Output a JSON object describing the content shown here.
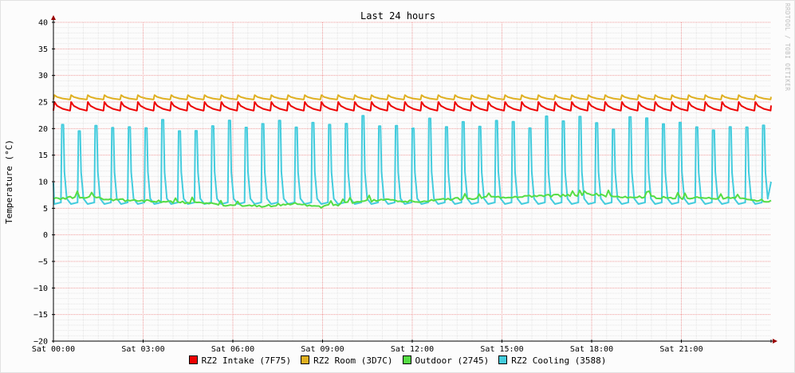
{
  "chart_data": {
    "type": "line",
    "title": "Last 24 hours",
    "ylabel": "Temperature (°C)",
    "xlabel": "",
    "ylim": [
      -20,
      40
    ],
    "yticks": [
      40,
      35,
      30,
      25,
      20,
      15,
      10,
      5,
      0,
      -5,
      -10,
      -15,
      -20
    ],
    "ytick_labels": [
      "40",
      "35",
      "30",
      "25",
      "20",
      "15",
      "10",
      "5",
      "0",
      "−5",
      "−10",
      "−15",
      "−20"
    ],
    "x_range_hours": [
      0,
      24
    ],
    "xticks": [
      {
        "hour": 0,
        "label": "Sat 00:00"
      },
      {
        "hour": 3,
        "label": "Sat 03:00"
      },
      {
        "hour": 6,
        "label": "Sat 06:00"
      },
      {
        "hour": 9,
        "label": "Sat 09:00"
      },
      {
        "hour": 12,
        "label": "Sat 12:00"
      },
      {
        "hour": 15,
        "label": "Sat 15:00"
      },
      {
        "hour": 18,
        "label": "Sat 18:00"
      },
      {
        "hour": 21,
        "label": "Sat 21:00"
      }
    ],
    "grid": true,
    "legend_position": "bottom",
    "watermark": "RRDTOOL / TOBI OETIKER",
    "series": [
      {
        "name": "RZ2 Intake (7F75)",
        "color": "#ee0000",
        "pattern": "sawtooth",
        "cycles": 43,
        "low": 23.4,
        "high": 25.0
      },
      {
        "name": "RZ2 Room (3D7C)",
        "color": "#e0b020",
        "pattern": "sawtooth",
        "cycles": 43,
        "low": 25.5,
        "high": 26.3
      },
      {
        "name": "Outdoor (2745)",
        "color": "#55dd44",
        "pattern": "noisy",
        "points": [
          [
            0,
            6.8
          ],
          [
            1,
            7.2
          ],
          [
            2,
            6.6
          ],
          [
            3,
            6.4
          ],
          [
            4,
            6.2
          ],
          [
            5,
            5.9
          ],
          [
            6,
            5.6
          ],
          [
            7,
            5.4
          ],
          [
            8,
            5.9
          ],
          [
            9,
            5.3
          ],
          [
            10,
            6.1
          ],
          [
            11,
            6.5
          ],
          [
            12,
            6.3
          ],
          [
            13,
            6.6
          ],
          [
            14,
            6.9
          ],
          [
            15,
            7.0
          ],
          [
            16,
            7.3
          ],
          [
            17,
            7.4
          ],
          [
            18,
            7.6
          ],
          [
            19,
            7.2
          ],
          [
            20,
            7.1
          ],
          [
            21,
            6.8
          ],
          [
            22,
            7.0
          ],
          [
            23,
            6.8
          ],
          [
            24,
            6.3
          ]
        ]
      },
      {
        "name": "RZ2 Cooling (3588)",
        "color": "#44ccdd",
        "pattern": "spikes",
        "cycles": 43,
        "base": 5.8,
        "peak": 21.0
      }
    ]
  }
}
